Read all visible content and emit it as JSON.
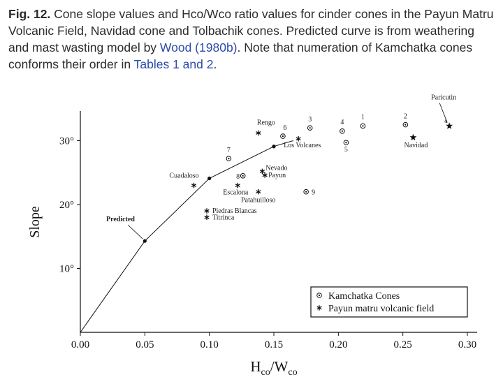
{
  "caption": {
    "lead": "Fig. 12.",
    "text_a": " Cone slope values and Hco/Wco ratio values for cinder cones in the Payun Matru Volcanic Field, Navidad cone and Tolbachik cones. Predicted curve is from weathering and mast wasting model by ",
    "ref_wood": "Wood (1980b)",
    "text_b": ". Note that numeration of Kamchatka cones conforms their order in ",
    "ref_tables": "Tables 1 and 2",
    "text_c": "."
  },
  "chart_data": {
    "type": "scatter",
    "xlabel_main": "H",
    "xlabel_sub1": "co",
    "xlabel_slash": "/W",
    "xlabel_sub2": "co",
    "ylabel": "Slope",
    "xlim": [
      0,
      0.31
    ],
    "ylim": [
      0,
      35
    ],
    "x_ticks": [
      {
        "value": 0.0,
        "label": "0.00"
      },
      {
        "value": 0.05,
        "label": "0.05"
      },
      {
        "value": 0.1,
        "label": "0.10"
      },
      {
        "value": 0.15,
        "label": "0.15"
      },
      {
        "value": 0.2,
        "label": "0.20"
      },
      {
        "value": 0.25,
        "label": "0.25"
      },
      {
        "value": 0.3,
        "label": "0.30"
      }
    ],
    "y_ticks": [
      {
        "value": 10,
        "label": "10°"
      },
      {
        "value": 20,
        "label": "20°"
      },
      {
        "value": 30,
        "label": "30°"
      }
    ],
    "legend": {
      "placement": "bottom-right",
      "entries": [
        {
          "symbol": "circle-dot",
          "label": "Kamchatka Cones"
        },
        {
          "symbol": "asterisk",
          "label": "Payun matru volcanic field"
        }
      ]
    },
    "predicted_curve": {
      "label": "Predicted",
      "points": [
        [
          0.0,
          0.0
        ],
        [
          0.05,
          14.3
        ],
        [
          0.1,
          24.1
        ],
        [
          0.15,
          29.1
        ],
        [
          0.165,
          30.0
        ]
      ],
      "markers": [
        [
          0.05,
          14.3
        ],
        [
          0.1,
          24.1
        ],
        [
          0.15,
          29.1
        ]
      ]
    },
    "series": [
      {
        "name": "Kamchatka Cones",
        "marker": "circle-dot",
        "points": [
          {
            "x": 0.219,
            "y": 32.3,
            "label": "1"
          },
          {
            "x": 0.252,
            "y": 32.5,
            "label": "2"
          },
          {
            "x": 0.178,
            "y": 32.0,
            "label": "3"
          },
          {
            "x": 0.203,
            "y": 31.5,
            "label": "4"
          },
          {
            "x": 0.206,
            "y": 29.7,
            "label": "5"
          },
          {
            "x": 0.157,
            "y": 30.7,
            "label": "6"
          },
          {
            "x": 0.115,
            "y": 27.2,
            "label": "7"
          },
          {
            "x": 0.126,
            "y": 24.5,
            "label": "8"
          },
          {
            "x": 0.175,
            "y": 22.0,
            "label": "9"
          }
        ]
      },
      {
        "name": "Payun matru volcanic field",
        "marker": "asterisk",
        "points": [
          {
            "x": 0.138,
            "y": 31.2,
            "label": "Rengo"
          },
          {
            "x": 0.169,
            "y": 30.3,
            "label": "Los Volcanes"
          },
          {
            "x": 0.088,
            "y": 23.0,
            "label": "Cuadaloso"
          },
          {
            "x": 0.122,
            "y": 23.0,
            "label": "Escalona"
          },
          {
            "x": 0.141,
            "y": 25.2,
            "label": "Nevado"
          },
          {
            "x": 0.143,
            "y": 24.6,
            "label": "Payun"
          },
          {
            "x": 0.138,
            "y": 22.0,
            "label": "Patahuilloso"
          },
          {
            "x": 0.098,
            "y": 19.0,
            "label": "Piedras Blancas"
          },
          {
            "x": 0.098,
            "y": 18.0,
            "label": "Titrinca"
          }
        ]
      },
      {
        "name": "",
        "marker": "star",
        "points": [
          {
            "x": 0.258,
            "y": 30.5,
            "label": "Navidad"
          },
          {
            "x": 0.286,
            "y": 32.3,
            "label": "Paricutin"
          }
        ]
      }
    ]
  }
}
